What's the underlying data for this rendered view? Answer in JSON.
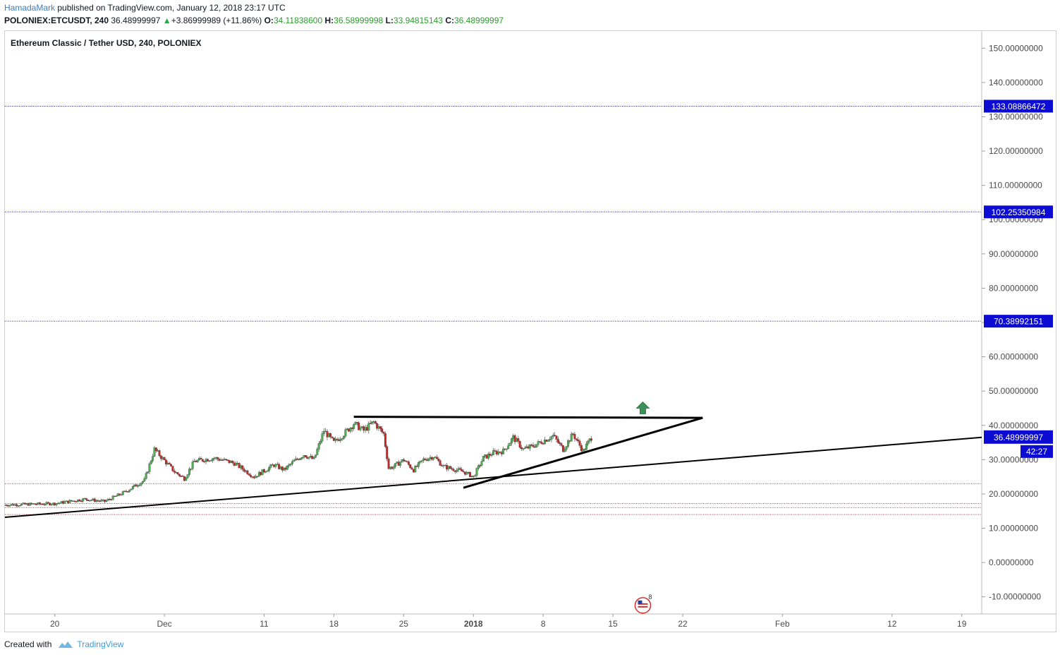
{
  "header": {
    "author": "HamadaMark",
    "published_text": "published on TradingView.com, January 12, 2018 23:17 UTC"
  },
  "ohlc": {
    "symbol": "POLONIEX:ETCUSDT, 240",
    "last": "36.48999997",
    "change": "+3.86999989 (+11.86%)",
    "o_label": "O:",
    "o_value": "34.11838600",
    "h_label": "H:",
    "h_value": "36.58999998",
    "l_label": "L:",
    "l_value": "33.94815143",
    "c_label": "C:",
    "c_value": "36.48999997",
    "up_icon": "triangle-up-icon"
  },
  "footer": {
    "created_with": "Created with",
    "brand": "TradingView",
    "logo_icon": "tradingview-cloud-icon"
  },
  "colors": {
    "candle_up": "#4caf50",
    "candle_down": "#c62828",
    "resistance_line": "#1a1aa8",
    "support_line": "#e0352b",
    "label_bg": "#0b0bd4",
    "arrow": "#3f8f5a",
    "trendline": "#000000"
  },
  "chart_data": {
    "type": "candlestick",
    "title": "Ethereum Classic / Tether USD, 240, POLONIEX",
    "ylim": [
      -15,
      155
    ],
    "y_ticks": [
      "150.00000000",
      "140.00000000",
      "130.00000000",
      "120.00000000",
      "110.00000000",
      "100.00000000",
      "90.00000000",
      "80.00000000",
      "70.00000000",
      "60.00000000",
      "50.00000000",
      "40.00000000",
      "30.00000000",
      "20.00000000",
      "10.00000000",
      "0.00000000",
      "-10.00000000"
    ],
    "y_tick_values": [
      150,
      140,
      130,
      120,
      110,
      100,
      90,
      80,
      70,
      60,
      50,
      40,
      30,
      20,
      10,
      0,
      -10
    ],
    "x_ticks": [
      {
        "label": "20",
        "date": "2017-11-20"
      },
      {
        "label": "Dec",
        "date": "2017-12-01"
      },
      {
        "label": "11",
        "date": "2017-12-11"
      },
      {
        "label": "18",
        "date": "2017-12-18"
      },
      {
        "label": "25",
        "date": "2017-12-25"
      },
      {
        "label": "2018",
        "date": "2018-01-01"
      },
      {
        "label": "8",
        "date": "2018-01-08"
      },
      {
        "label": "15",
        "date": "2018-01-15"
      },
      {
        "label": "22",
        "date": "2018-01-22"
      },
      {
        "label": "Feb",
        "date": "2018-02-01"
      },
      {
        "label": "12",
        "date": "2018-02-12"
      },
      {
        "label": "19",
        "date": "2018-02-19"
      }
    ],
    "x_range": [
      "2017-11-15",
      "2018-02-21"
    ],
    "resistance_levels": [
      {
        "value": 133.08866472,
        "label": "133.08866472"
      },
      {
        "value": 102.25350984,
        "label": "102.25350984"
      },
      {
        "value": 70.38992151,
        "label": "70.38992151"
      }
    ],
    "support_levels": [
      23.0,
      17.2,
      16.0,
      14.0
    ],
    "last_price": {
      "value": 36.48999997,
      "label": "36.48999997"
    },
    "countdown": "42:27",
    "trendlines": [
      {
        "from": [
          "2017-11-15",
          13.2
        ],
        "to": [
          "2018-02-21",
          36.5
        ],
        "width": 2
      },
      {
        "from": [
          "2017-12-20",
          42.5
        ],
        "to": [
          "2018-01-24",
          42.2
        ],
        "width": 3
      },
      {
        "from": [
          "2017-12-31",
          21.8
        ],
        "to": [
          "2018-01-24",
          42.2
        ],
        "width": 3
      }
    ],
    "arrow": {
      "date": "2018-01-18",
      "value": 45.0,
      "direction": "up"
    },
    "event_marker": {
      "date": "2018-01-18",
      "value": -12.5,
      "count": "8"
    },
    "price_anchors": [
      [
        "2017-11-15",
        16.8
      ],
      [
        "2017-11-20",
        17.2
      ],
      [
        "2017-11-23",
        18.5
      ],
      [
        "2017-11-25",
        17.8
      ],
      [
        "2017-11-27",
        20.5
      ],
      [
        "2017-11-29",
        24.0
      ],
      [
        "2017-11-30",
        33.0
      ],
      [
        "2017-12-02",
        26.5
      ],
      [
        "2017-12-03",
        24.5
      ],
      [
        "2017-12-04",
        29.5
      ],
      [
        "2017-12-06",
        30.5
      ],
      [
        "2017-12-08",
        29.0
      ],
      [
        "2017-12-10",
        25.0
      ],
      [
        "2017-12-12",
        28.5
      ],
      [
        "2017-12-13",
        27.0
      ],
      [
        "2017-12-14",
        29.5
      ],
      [
        "2017-12-15",
        31.5
      ],
      [
        "2017-12-16",
        30.0
      ],
      [
        "2017-12-17",
        38.5
      ],
      [
        "2017-12-18",
        35.0
      ],
      [
        "2017-12-19",
        37.5
      ],
      [
        "2017-12-20",
        40.5
      ],
      [
        "2017-12-21",
        38.5
      ],
      [
        "2017-12-22",
        41.0
      ],
      [
        "2017-12-23",
        37.5
      ],
      [
        "2017-12-23T12:00",
        27.5
      ],
      [
        "2017-12-24",
        28.0
      ],
      [
        "2017-12-25",
        30.0
      ],
      [
        "2017-12-26",
        27.0
      ],
      [
        "2017-12-27",
        30.0
      ],
      [
        "2017-12-28",
        31.0
      ],
      [
        "2017-12-29",
        28.0
      ],
      [
        "2017-12-31",
        26.5
      ],
      [
        "2018-01-01",
        25.0
      ],
      [
        "2018-01-02",
        30.5
      ],
      [
        "2018-01-03",
        32.0
      ],
      [
        "2018-01-04",
        32.5
      ],
      [
        "2018-01-05",
        36.5
      ],
      [
        "2018-01-06",
        33.0
      ],
      [
        "2018-01-07",
        34.0
      ],
      [
        "2018-01-08",
        35.5
      ],
      [
        "2018-01-09",
        37.0
      ],
      [
        "2018-01-10",
        33.0
      ],
      [
        "2018-01-11",
        37.5
      ],
      [
        "2018-01-12",
        32.5
      ],
      [
        "2018-01-12T20:00",
        36.5
      ]
    ]
  }
}
